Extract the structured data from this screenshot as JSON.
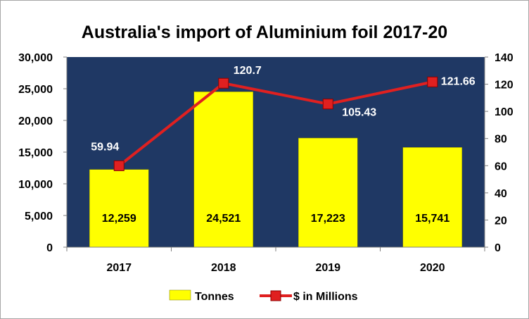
{
  "chart_data": {
    "type": "bar",
    "title": "Australia's import of Aluminium foil 2017-20",
    "categories": [
      "2017",
      "2018",
      "2019",
      "2020"
    ],
    "series": [
      {
        "name": "Tonnes",
        "type": "bar",
        "axis": "left",
        "color": "#ffff00",
        "values": [
          12259,
          24521,
          17223,
          15741
        ],
        "labels": [
          "12,259",
          "24,521",
          "17,223",
          "15,741"
        ]
      },
      {
        "name": "$ in Millions",
        "type": "line",
        "axis": "right",
        "color": "#c0504d",
        "values": [
          59.94,
          120.7,
          105.43,
          121.66
        ],
        "labels": [
          "59.94",
          "120.7",
          "105.43",
          "121.66"
        ]
      }
    ],
    "y_left": {
      "min": 0,
      "max": 30000,
      "ticks": [
        "0",
        "5,000",
        "10,000",
        "15,000",
        "20,000",
        "25,000",
        "30,000"
      ]
    },
    "y_right": {
      "min": 0,
      "max": 140,
      "ticks": [
        "0",
        "20",
        "40",
        "60",
        "80",
        "100",
        "120",
        "140"
      ]
    },
    "plot_background": "#1f3864",
    "legend_position": "bottom",
    "grid": false
  }
}
